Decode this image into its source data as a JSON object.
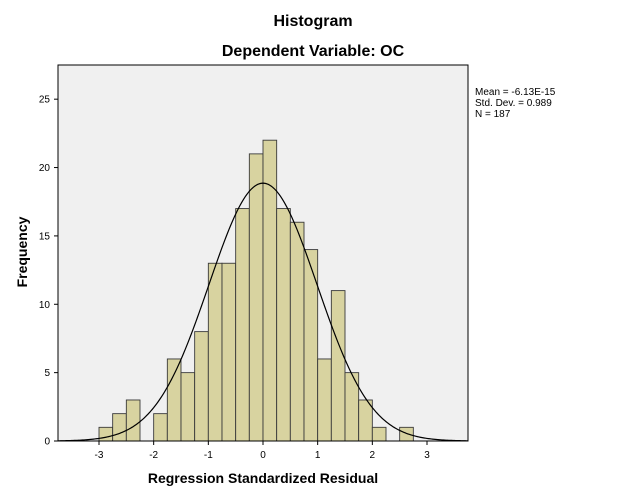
{
  "chart_data": {
    "type": "bar",
    "subtype": "histogram",
    "title": "Histogram",
    "subtitle": "Dependent Variable: OC",
    "xlabel": "Regression Standardized Residual",
    "ylabel": "Frequency",
    "xlim": [
      -3.75,
      3.75
    ],
    "ylim": [
      0,
      27.5
    ],
    "xticks": [
      -3,
      -2,
      -1,
      0,
      1,
      2,
      3
    ],
    "yticks": [
      0,
      5,
      10,
      15,
      20,
      25
    ],
    "bin_width": 0.25,
    "bin_starts": [
      -3.0,
      -2.75,
      -2.5,
      -2.25,
      -2.0,
      -1.75,
      -1.5,
      -1.25,
      -1.0,
      -0.75,
      -0.5,
      -0.25,
      0.0,
      0.25,
      0.5,
      0.75,
      1.0,
      1.25,
      1.5,
      1.75,
      2.0,
      2.25,
      2.5
    ],
    "values": [
      1,
      2,
      3,
      0,
      2,
      6,
      5,
      8,
      13,
      13,
      17,
      21,
      22,
      17,
      16,
      14,
      6,
      11,
      5,
      3,
      1,
      0,
      1
    ],
    "normal_curve": {
      "mean": 0,
      "std": 0.989,
      "n": 187
    },
    "legend": {
      "mean": "Mean = -6.13E-15",
      "std": "Std. Dev. = 0.989",
      "n": "N = 187"
    },
    "colors": {
      "bar_fill": "#d8d3a0",
      "bar_stroke": "#3a3a3a",
      "plot_bg": "#f0f0f0",
      "curve": "#000000"
    }
  }
}
